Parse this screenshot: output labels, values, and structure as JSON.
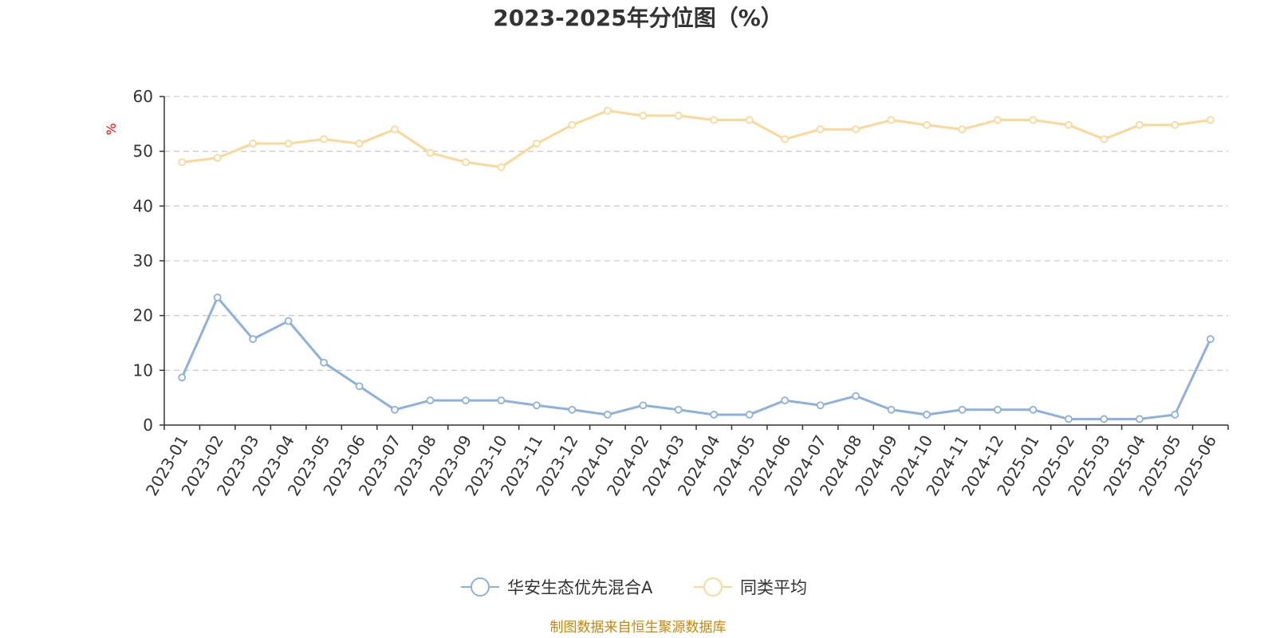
{
  "chart_data": {
    "type": "line",
    "title": "2023-2025年分位图（%）",
    "ylabel": "%",
    "ylim": [
      0,
      60
    ],
    "yticks": [
      0,
      10,
      20,
      30,
      40,
      50,
      60
    ],
    "grid": true,
    "legend_position": "bottom-center",
    "categories": [
      "2023-01",
      "2023-02",
      "2023-03",
      "2023-04",
      "2023-05",
      "2023-06",
      "2023-07",
      "2023-08",
      "2023-09",
      "2023-10",
      "2023-11",
      "2023-12",
      "2024-01",
      "2024-02",
      "2024-03",
      "2024-04",
      "2024-05",
      "2024-06",
      "2024-07",
      "2024-08",
      "2024-09",
      "2024-10",
      "2024-11",
      "2024-12",
      "2025-01",
      "2025-02",
      "2025-03",
      "2025-04",
      "2025-05",
      "2025-06"
    ],
    "series": [
      {
        "name": "华安生态优先混合A",
        "color": "#8eb0dc",
        "values": [
          8.7,
          23.3,
          15.7,
          19.0,
          11.4,
          7.1,
          2.8,
          4.5,
          4.5,
          4.5,
          3.6,
          2.8,
          1.9,
          3.6,
          2.8,
          1.9,
          1.9,
          4.5,
          3.6,
          5.3,
          2.8,
          1.9,
          2.8,
          2.8,
          2.8,
          1.1,
          1.1,
          1.1,
          1.9,
          15.7
        ]
      },
      {
        "name": "同类平均",
        "color": "#fad89a",
        "values": [
          48.0,
          48.8,
          51.4,
          51.4,
          52.2,
          51.4,
          54.0,
          49.7,
          48.0,
          47.1,
          51.4,
          54.8,
          57.4,
          56.5,
          56.5,
          55.7,
          55.7,
          52.2,
          54.0,
          54.0,
          55.7,
          54.8,
          54.0,
          55.7,
          55.7,
          54.8,
          52.2,
          54.8,
          54.8,
          55.7
        ]
      }
    ]
  },
  "source_text": "制图数据来自恒生聚源数据库"
}
